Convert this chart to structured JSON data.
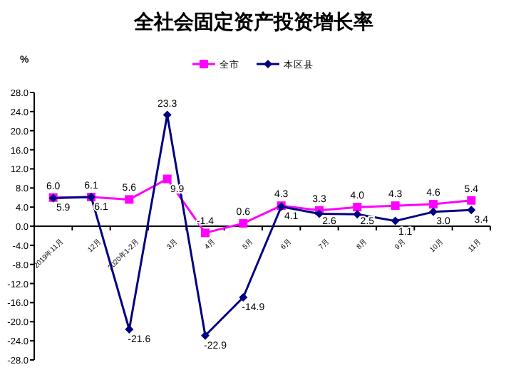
{
  "chart_data": {
    "type": "line",
    "title": "全社会固定资产投资增长率",
    "ylabel": "%",
    "categories": [
      "2019年11月",
      "12月",
      "2020年1-2月",
      "3月",
      "4月",
      "5月",
      "6月",
      "7月",
      "8月",
      "9月",
      "10月",
      "11月"
    ],
    "series": [
      {
        "name": "全市",
        "color": "#ff00ff",
        "marker": "square",
        "values": [
          6.0,
          6.1,
          5.6,
          9.9,
          -1.4,
          0.6,
          4.3,
          3.3,
          4.0,
          4.3,
          4.6,
          5.4
        ],
        "value_labels": [
          "6.0",
          "6.1",
          "5.6",
          "9.9",
          "-1.4",
          "0.6",
          "4.3",
          "3.3",
          "4.0",
          "4.3",
          "4.6",
          "5.4"
        ]
      },
      {
        "name": "本区县",
        "color": "#000080",
        "marker": "diamond",
        "values": [
          5.9,
          6.1,
          -21.6,
          23.3,
          -22.9,
          -14.9,
          4.1,
          2.6,
          2.5,
          1.1,
          3.0,
          3.4
        ],
        "value_labels": [
          "5.9",
          "6.1",
          "-21.6",
          "23.3",
          "-22.9",
          "-14.9",
          "4.1",
          "2.6",
          "2.5",
          "1.1",
          "3.0",
          "3.4"
        ]
      }
    ],
    "ylim": [
      -28,
      28
    ],
    "yticks": [
      {
        "value": -28,
        "label": "-28.0"
      },
      {
        "value": -24,
        "label": "-24.0"
      },
      {
        "value": -20,
        "label": "-20.0"
      },
      {
        "value": -16,
        "label": "-16.0"
      },
      {
        "value": -12,
        "label": "-12.0"
      },
      {
        "value": -8,
        "label": "-8.0"
      },
      {
        "value": -4,
        "label": "-4.0"
      },
      {
        "value": 0,
        "label": "0.0"
      },
      {
        "value": 4,
        "label": "4.0"
      },
      {
        "value": 8,
        "label": "8.0"
      },
      {
        "value": 12,
        "label": "12.0"
      },
      {
        "value": 16,
        "label": "16.0"
      },
      {
        "value": 20,
        "label": "20.0"
      },
      {
        "value": 24,
        "label": "24.0"
      },
      {
        "value": 28,
        "label": "28.0"
      }
    ],
    "legend": "top",
    "grid": false
  }
}
